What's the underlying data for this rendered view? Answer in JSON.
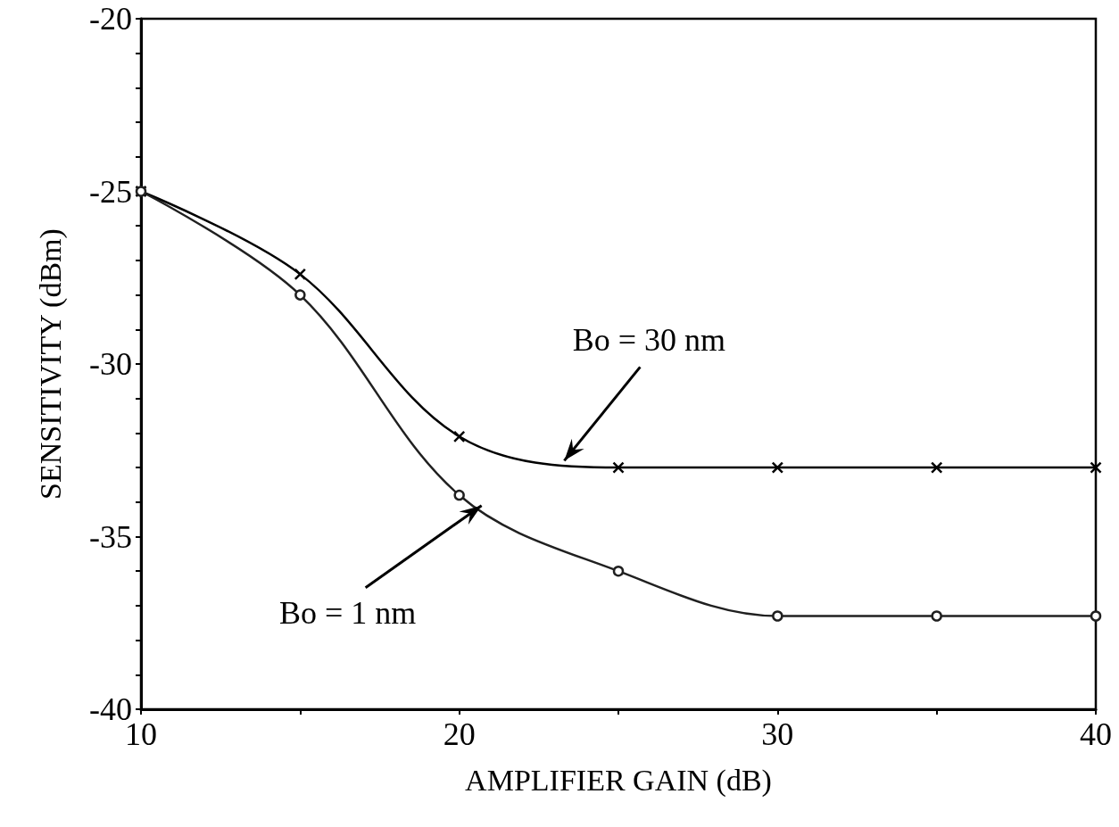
{
  "chart_data": {
    "type": "line",
    "xlabel": "AMPLIFIER GAIN (dB)",
    "ylabel": "SENSITIVITY (dBm)",
    "xlim": [
      10,
      40
    ],
    "ylim": [
      -40,
      -20
    ],
    "xticks": [
      10,
      {
        "value": 15,
        "label": null
      },
      20,
      {
        "value": 25,
        "label": null
      },
      30,
      {
        "value": 35,
        "label": null
      },
      40
    ],
    "yticks": [
      -40,
      {
        "value": -39,
        "label": null
      },
      {
        "value": -38,
        "label": null
      },
      {
        "value": -37,
        "label": null
      },
      {
        "value": -36,
        "label": null
      },
      -35,
      {
        "value": -34,
        "label": null
      },
      {
        "value": -33,
        "label": null
      },
      {
        "value": -32,
        "label": null
      },
      {
        "value": -31,
        "label": null
      },
      -30,
      {
        "value": -29,
        "label": null
      },
      {
        "value": -28,
        "label": null
      },
      {
        "value": -27,
        "label": null
      },
      {
        "value": -26,
        "label": null
      },
      -25,
      {
        "value": -24,
        "label": null
      },
      {
        "value": -23,
        "label": null
      },
      {
        "value": -22,
        "label": null
      },
      {
        "value": -21,
        "label": null
      },
      -20
    ],
    "series": [
      {
        "color": "#000000",
        "marker": "cross",
        "x": [
          10,
          15,
          20,
          25,
          30,
          35,
          40
        ],
        "values": [
          -25,
          -27.4,
          -32.1,
          -33.0,
          -33.0,
          -33.0,
          -33.0
        ]
      },
      {
        "color": "#202020",
        "marker": "circle",
        "x": [
          10,
          15,
          20,
          25,
          30,
          35,
          40
        ],
        "values": [
          -25,
          -28.0,
          -33.8,
          -36.0,
          -37.3,
          -37.3,
          -37.3
        ]
      }
    ],
    "annotations": [
      {
        "text": "Bo = 30 nm",
        "x": 23.3,
        "y": -32.8
      },
      {
        "text": "Bo = 1 nm",
        "x": 20.7,
        "y": -34.1
      }
    ],
    "grid": false,
    "line_style": "solid"
  }
}
